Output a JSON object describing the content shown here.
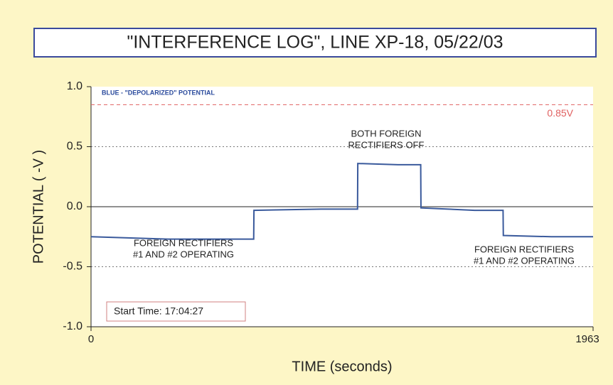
{
  "chart_data": {
    "type": "line",
    "title": "\"INTERFERENCE LOG\", LINE XP-18, 05/22/03",
    "subtitle": "BLUE - \"DEPOLARIZED\" POTENTIAL",
    "xlabel": "TIME (seconds)",
    "ylabel": "POTENTIAL ( -V )",
    "xlim": [
      0,
      1963
    ],
    "xticks": [
      0,
      1963
    ],
    "ylim": [
      -1,
      1
    ],
    "yticks": [
      {
        "value": -1,
        "label": "-1.0"
      },
      -0.5,
      {
        "value": 0,
        "label": "0.0"
      },
      0.5,
      {
        "value": 1,
        "label": "1.0"
      }
    ],
    "grid": true,
    "threshold": {
      "value": 0.85,
      "label": "0.85V",
      "color": "#e06060"
    },
    "start_time": "Start Time: 17:04:27",
    "annotations": [
      {
        "lines": [
          "FOREIGN RECTIFIERS",
          "#1 AND #2 OPERATING"
        ]
      },
      {
        "lines": [
          "BOTH FOREIGN",
          "RECTIFIERS OFF"
        ]
      },
      {
        "lines": [
          "FOREIGN RECTIFIERS",
          "#1 AND #2 OPERATING"
        ]
      }
    ],
    "x": [
      0,
      300,
      636,
      637,
      900,
      1042,
      1043,
      1200,
      1289,
      1290,
      1500,
      1611,
      1612,
      1800,
      1963
    ],
    "series": [
      {
        "name": "Depolarized potential",
        "color": "#3a5a9c",
        "values": [
          -0.25,
          -0.27,
          -0.27,
          -0.03,
          -0.02,
          -0.02,
          0.36,
          0.35,
          0.35,
          -0.01,
          -0.03,
          -0.03,
          -0.24,
          -0.25,
          -0.25
        ]
      }
    ]
  }
}
